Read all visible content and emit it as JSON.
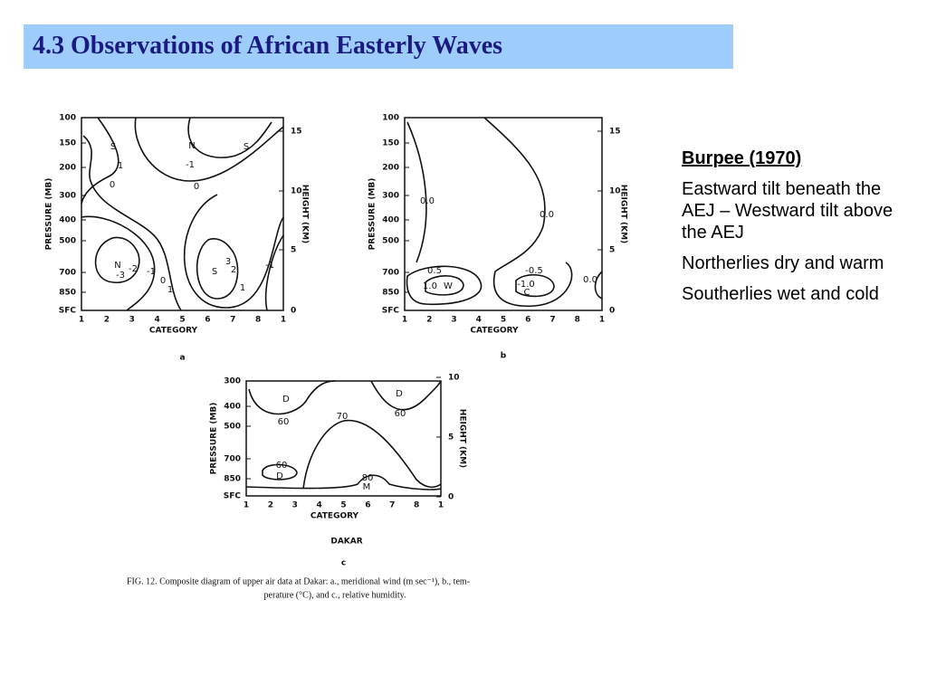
{
  "title": "4.3 Observations of African Easterly Waves",
  "figure": {
    "panels": [
      {
        "letter": "a",
        "y_axis_label": "PRESSURE (MB)",
        "y2_axis_label": "HEIGHT (KM)",
        "x_axis_label": "CATEGORY",
        "pressure_ticks": [
          "100",
          "150",
          "200",
          "300",
          "400",
          "500",
          "700",
          "850",
          "SFC"
        ],
        "height_ticks": [
          "15",
          "10",
          "5",
          "0"
        ],
        "category_ticks": [
          "1",
          "2",
          "3",
          "4",
          "5",
          "6",
          "7",
          "8",
          "1"
        ],
        "contour_labels": [
          "S",
          "N",
          "S",
          "1",
          "-1",
          "0",
          "0",
          "N",
          "-2",
          "-3",
          "-1",
          "0",
          "1",
          "S",
          "3",
          "2",
          "1",
          "-1"
        ]
      },
      {
        "letter": "b",
        "y_axis_label": "PRESSURE (MB)",
        "y2_axis_label": "HEIGHT (KM)",
        "x_axis_label": "CATEGORY",
        "pressure_ticks": [
          "100",
          "150",
          "200",
          "300",
          "400",
          "500",
          "700",
          "850",
          "SFC"
        ],
        "height_ticks": [
          "15",
          "10",
          "5",
          "0"
        ],
        "category_ticks": [
          "1",
          "2",
          "3",
          "4",
          "5",
          "6",
          "7",
          "8",
          "1"
        ],
        "contour_labels": [
          "0.0",
          "0.0",
          "0.5",
          "1.0",
          "W",
          "-0.5",
          "-1.0",
          "C",
          "0.0"
        ]
      },
      {
        "letter": "c",
        "y_axis_label": "PRESSURE (MB)",
        "y2_axis_label": "HEIGHT (KM)",
        "x_axis_label": "CATEGORY",
        "pressure_ticks": [
          "300",
          "400",
          "500",
          "700",
          "850",
          "SFC"
        ],
        "height_ticks": [
          "10",
          "5",
          "0"
        ],
        "category_ticks": [
          "1",
          "2",
          "3",
          "4",
          "5",
          "6",
          "7",
          "8",
          "1"
        ],
        "contour_labels": [
          "D",
          "D",
          "60",
          "60",
          "70",
          "60",
          "D",
          "80",
          "M"
        ]
      }
    ],
    "panel_c_title": "DAKAR",
    "caption_lines": [
      "FIG. 12. Composite diagram of upper air data at Dakar: a., meridional wind (m sec⁻¹), b., tem-",
      "perature (°C), and c., relative humidity."
    ]
  },
  "notes": {
    "heading": "Burpee (1970)",
    "paragraphs": [
      "Eastward tilt beneath the AEJ – Westward tilt above the AEJ",
      "Northerlies dry and warm",
      "Southerlies wet and cold"
    ]
  }
}
